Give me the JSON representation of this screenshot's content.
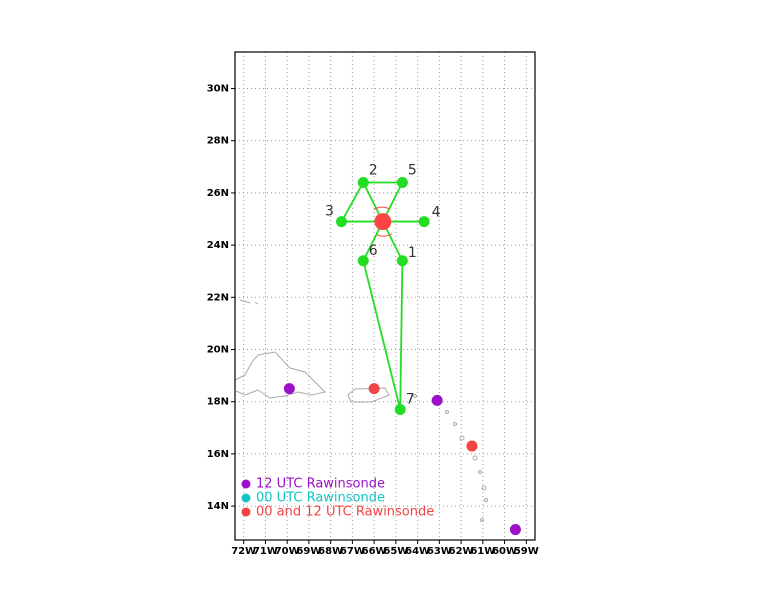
{
  "map": {
    "xlim": [
      -72.4,
      -58.6
    ],
    "ylim": [
      12.7,
      31.4
    ],
    "xticks": [
      {
        "value": -72,
        "label": "72W"
      },
      {
        "value": -71,
        "label": "71W"
      },
      {
        "value": -70,
        "label": "70W"
      },
      {
        "value": -69,
        "label": "69W"
      },
      {
        "value": -68,
        "label": "68W"
      },
      {
        "value": -67,
        "label": "67W"
      },
      {
        "value": -66,
        "label": "66W"
      },
      {
        "value": -65,
        "label": "65W"
      },
      {
        "value": -64,
        "label": "64W"
      },
      {
        "value": -63,
        "label": "63W"
      },
      {
        "value": -62,
        "label": "62W"
      },
      {
        "value": -61,
        "label": "61W"
      },
      {
        "value": -60,
        "label": "60W"
      },
      {
        "value": -59,
        "label": "59W"
      }
    ],
    "yticks": [
      {
        "value": 14,
        "label": "14N"
      },
      {
        "value": 16,
        "label": "16N"
      },
      {
        "value": 18,
        "label": "18N"
      },
      {
        "value": 20,
        "label": "20N"
      },
      {
        "value": 22,
        "label": "22N"
      },
      {
        "value": 24,
        "label": "24N"
      },
      {
        "value": 26,
        "label": "26N"
      },
      {
        "value": 28,
        "label": "28N"
      },
      {
        "value": 30,
        "label": "30N"
      }
    ],
    "grid": true,
    "center": {
      "lon": -65.6,
      "lat": 24.9,
      "color": "#ff4444"
    },
    "dropsondes": {
      "color": "#22dd22",
      "points": [
        {
          "label": "1",
          "lon": -64.7,
          "lat": 23.4
        },
        {
          "label": "2",
          "lon": -66.5,
          "lat": 26.4
        },
        {
          "label": "3",
          "lon": -67.5,
          "lat": 24.9
        },
        {
          "label": "4",
          "lon": -63.7,
          "lat": 24.9
        },
        {
          "label": "5",
          "lon": -64.7,
          "lat": 26.4
        },
        {
          "label": "6",
          "lon": -66.5,
          "lat": 23.4
        },
        {
          "label": "7",
          "lon": -64.8,
          "lat": 17.7
        }
      ]
    },
    "rawinsondes": [
      {
        "name": "12 UTC Rawinsonde",
        "color": "#9a11c9",
        "points": [
          {
            "lon": -69.9,
            "lat": 18.5
          },
          {
            "lon": -63.1,
            "lat": 18.05
          },
          {
            "lon": -59.5,
            "lat": 13.1
          }
        ]
      },
      {
        "name": "00 UTC Rawinsonde",
        "color": "#11c6c6",
        "points": []
      },
      {
        "name": "00 and 12 UTC Rawinsonde",
        "color": "#f24444",
        "points": [
          {
            "lon": -66.0,
            "lat": 18.5
          },
          {
            "lon": -61.5,
            "lat": 16.3
          }
        ]
      }
    ]
  }
}
